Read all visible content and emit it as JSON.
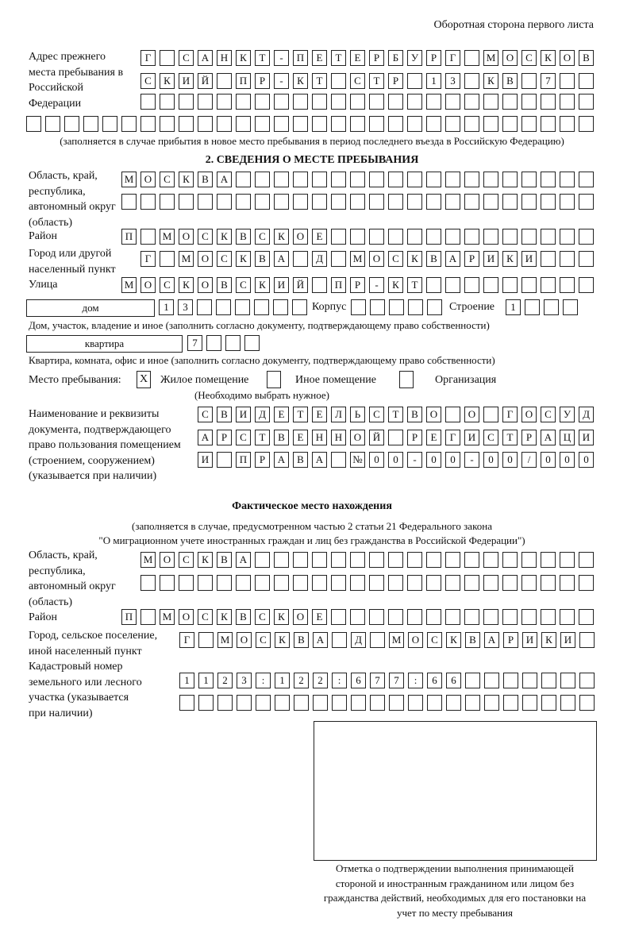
{
  "header": {
    "page_side": "Оборотная сторона первого листа"
  },
  "previous_address": {
    "label": "Адрес прежнего места пребывания в Российской Федерации",
    "rows": [
      [
        "Г",
        "",
        "С",
        "А",
        "Н",
        "К",
        "Т",
        "-",
        "П",
        "Е",
        "Т",
        "Е",
        "Р",
        "Б",
        "У",
        "Р",
        "Г",
        "",
        "М",
        "О",
        "С",
        "К",
        "О",
        "В"
      ],
      [
        "С",
        "К",
        "И",
        "Й",
        "",
        "П",
        "Р",
        "-",
        "К",
        "Т",
        "",
        "С",
        "Т",
        "Р",
        "",
        "1",
        "3",
        "",
        "К",
        "В",
        "",
        "7",
        "",
        ""
      ],
      [
        "",
        "",
        "",
        "",
        "",
        "",
        "",
        "",
        "",
        "",
        "",
        "",
        "",
        "",
        "",
        "",
        "",
        "",
        "",
        "",
        "",
        "",
        "",
        ""
      ],
      [
        "",
        "",
        "",
        "",
        "",
        "",
        "",
        "",
        "",
        "",
        "",
        "",
        "",
        "",
        "",
        "",
        "",
        "",
        "",
        "",
        "",
        "",
        "",
        "",
        "",
        "",
        "",
        "",
        "",
        ""
      ]
    ],
    "note": "(заполняется в случае прибытия в новое место пребывания в период последнего въезда в Российскую Федерацию)"
  },
  "section2": {
    "title": "2. СВЕДЕНИЯ О МЕСТЕ ПРЕБЫВАНИЯ",
    "region_label": "Область, край, республика, автономный округ (область)",
    "region_rows": [
      [
        "М",
        "О",
        "С",
        "К",
        "В",
        "А",
        "",
        "",
        "",
        "",
        "",
        "",
        "",
        "",
        "",
        "",
        "",
        "",
        "",
        "",
        "",
        "",
        "",
        "",
        ""
      ],
      [
        "",
        "",
        "",
        "",
        "",
        "",
        "",
        "",
        "",
        "",
        "",
        "",
        "",
        "",
        "",
        "",
        "",
        "",
        "",
        "",
        "",
        "",
        "",
        "",
        ""
      ]
    ],
    "district_label": "Район",
    "district": [
      "П",
      "",
      "М",
      "О",
      "С",
      "К",
      "В",
      "С",
      "К",
      "О",
      "Е",
      "",
      "",
      "",
      "",
      "",
      "",
      "",
      "",
      "",
      "",
      "",
      "",
      "",
      ""
    ],
    "city_label": "Город или другой населенный пункт",
    "city": [
      "Г",
      "",
      "М",
      "О",
      "С",
      "К",
      "В",
      "А",
      "",
      "Д",
      "",
      "М",
      "О",
      "С",
      "К",
      "В",
      "А",
      "Р",
      "И",
      "К",
      "И",
      "",
      "",
      ""
    ],
    "street_label": "Улица",
    "street": [
      "М",
      "О",
      "С",
      "К",
      "О",
      "В",
      "С",
      "К",
      "И",
      "Й",
      "",
      "П",
      "Р",
      "-",
      "К",
      "Т",
      "",
      "",
      "",
      "",
      "",
      "",
      "",
      "",
      ""
    ],
    "house_type": "дом",
    "house": [
      "1",
      "3",
      "",
      "",
      "",
      "",
      "",
      ""
    ],
    "building_label": "Корпус",
    "building": [
      "",
      "",
      "",
      "",
      ""
    ],
    "structure_label": "Строение",
    "structure": [
      "1",
      "",
      "",
      ""
    ],
    "house_note": "Дом, участок, владение и иное (заполнить согласно документу, подтверждающему право собственности)",
    "apartment_type": "квартира",
    "apartment": [
      "7",
      "",
      "",
      ""
    ],
    "apartment_note": "Квартира, комната, офис и иное (заполнить согласно документу, подтверждающему право собственности)",
    "stay_place_label": "Место пребывания:",
    "options": [
      {
        "label": "Жилое помещение",
        "mark": "X"
      },
      {
        "label": "Иное помещение",
        "mark": ""
      },
      {
        "label": "Организация",
        "mark": ""
      }
    ],
    "choose_note": "(Необходимо выбрать нужное)",
    "doc_label": "Наименование и реквизиты документа, подтверждающего право пользования помещением (строением, сооружением) (указывается при наличии)",
    "doc_rows": [
      [
        "С",
        "В",
        "И",
        "Д",
        "Е",
        "Т",
        "Е",
        "Л",
        "Ь",
        "С",
        "Т",
        "В",
        "О",
        "",
        "О",
        "",
        "Г",
        "О",
        "С",
        "У",
        "Д"
      ],
      [
        "А",
        "Р",
        "С",
        "Т",
        "В",
        "Е",
        "Н",
        "Н",
        "О",
        "Й",
        "",
        "Р",
        "Е",
        "Г",
        "И",
        "С",
        "Т",
        "Р",
        "А",
        "Ц",
        "И"
      ],
      [
        "И",
        "",
        "П",
        "Р",
        "А",
        "В",
        "А",
        "",
        "№",
        "0",
        "0",
        "-",
        "0",
        "0",
        "-",
        "0",
        "0",
        "/",
        "0",
        "0",
        "0"
      ]
    ]
  },
  "actual": {
    "title": "Фактическое место нахождения",
    "note1": "(заполняется в случае, предусмотренном частью 2 статьи 21 Федерального закона",
    "note2": "\"О миграционном учете иностранных граждан и лиц без гражданства в Российской Федерации\")",
    "region_label": "Область, край, республика, автономный округ (область)",
    "region_rows": [
      [
        "М",
        "О",
        "С",
        "К",
        "В",
        "А",
        "",
        "",
        "",
        "",
        "",
        "",
        "",
        "",
        "",
        "",
        "",
        "",
        "",
        "",
        "",
        "",
        "",
        ""
      ],
      [
        "",
        "",
        "",
        "",
        "",
        "",
        "",
        "",
        "",
        "",
        "",
        "",
        "",
        "",
        "",
        "",
        "",
        "",
        "",
        "",
        "",
        "",
        "",
        ""
      ]
    ],
    "district_label": "Район",
    "district": [
      "П",
      "",
      "М",
      "О",
      "С",
      "К",
      "В",
      "С",
      "К",
      "О",
      "Е",
      "",
      "",
      "",
      "",
      "",
      "",
      "",
      "",
      "",
      "",
      "",
      "",
      "",
      ""
    ],
    "city_label": "Город, сельское поселение, иной населенный пункт",
    "city": [
      "Г",
      "",
      "М",
      "О",
      "С",
      "К",
      "В",
      "А",
      "",
      "Д",
      "",
      "М",
      "О",
      "С",
      "К",
      "В",
      "А",
      "Р",
      "И",
      "К",
      "И",
      ""
    ],
    "cadastral_label": "Кадастровый номер земельного или лесного участка (указывается при наличии)",
    "cadastral_rows": [
      [
        "1",
        "1",
        "2",
        "3",
        ":",
        "1",
        "2",
        "2",
        ":",
        "6",
        "7",
        "7",
        ":",
        "6",
        "6",
        "",
        "",
        "",
        "",
        "",
        "",
        ""
      ],
      [
        "",
        "",
        "",
        "",
        "",
        "",
        "",
        "",
        "",
        "",
        "",
        "",
        "",
        "",
        "",
        "",
        "",
        "",
        "",
        "",
        "",
        ""
      ]
    ]
  },
  "confirmation": {
    "caption": "Отметка о подтверждении выполнения принимающей стороной и иностранным гражданином или лицом без гражданства действий, необходимых для его постановки на учет по месту пребывания"
  }
}
